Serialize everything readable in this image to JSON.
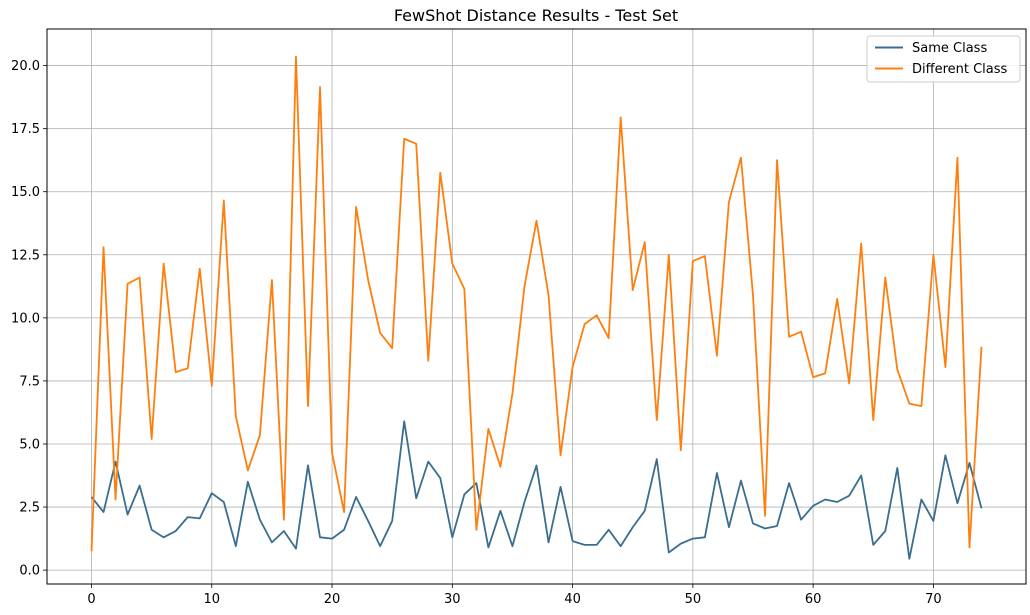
{
  "chart_data": {
    "type": "line",
    "title": "FewShot Distance Results - Test Set",
    "xlabel": "",
    "ylabel": "",
    "xlim": [
      -3.7,
      77.7
    ],
    "ylim": [
      -0.55,
      21.45
    ],
    "xticks": [
      0,
      10,
      20,
      30,
      40,
      50,
      60,
      70
    ],
    "yticks": [
      0.0,
      2.5,
      5.0,
      7.5,
      10.0,
      12.5,
      15.0,
      17.5,
      20.0
    ],
    "ytick_labels": [
      "0.0",
      "2.5",
      "5.0",
      "7.5",
      "10.0",
      "12.5",
      "15.0",
      "17.5",
      "20.0"
    ],
    "grid": true,
    "legend_position": "top-right",
    "series": [
      {
        "name": "Same Class",
        "color": "#3a6e8f",
        "values": [
          2.9,
          2.3,
          4.3,
          2.2,
          3.35,
          1.6,
          1.3,
          1.55,
          2.1,
          2.05,
          3.05,
          2.7,
          0.95,
          3.5,
          2.0,
          1.1,
          1.55,
          0.85,
          4.15,
          1.3,
          1.25,
          1.6,
          2.9,
          1.95,
          0.95,
          1.95,
          5.9,
          2.85,
          4.3,
          3.65,
          1.3,
          3.0,
          3.45,
          0.9,
          2.35,
          0.95,
          2.7,
          4.15,
          1.1,
          3.3,
          1.15,
          1.0,
          1.0,
          1.6,
          0.95,
          1.7,
          2.35,
          4.4,
          0.7,
          1.05,
          1.25,
          1.3,
          3.85,
          1.7,
          3.55,
          1.85,
          1.65,
          1.75,
          3.45,
          2.0,
          2.55,
          2.8,
          2.7,
          2.95,
          3.75,
          1.0,
          1.55,
          4.05,
          0.45,
          2.8,
          1.95,
          4.55,
          2.65,
          4.25,
          2.45
        ]
      },
      {
        "name": "Different Class",
        "color": "#ff7f0e",
        "values": [
          0.75,
          12.8,
          2.8,
          11.35,
          11.6,
          5.2,
          12.15,
          7.85,
          8.0,
          11.95,
          7.3,
          14.65,
          6.1,
          3.95,
          5.35,
          11.5,
          2.0,
          20.35,
          6.5,
          19.15,
          4.65,
          2.3,
          14.4,
          11.5,
          9.4,
          8.8,
          17.1,
          16.9,
          8.3,
          15.75,
          12.15,
          11.15,
          1.6,
          5.6,
          4.1,
          7.0,
          11.25,
          13.85,
          10.9,
          4.55,
          8.05,
          9.75,
          10.1,
          9.2,
          17.95,
          11.1,
          13.0,
          5.95,
          12.5,
          4.75,
          12.25,
          12.45,
          8.5,
          14.6,
          16.35,
          10.9,
          2.15,
          16.25,
          9.25,
          9.45,
          7.65,
          7.8,
          10.75,
          7.4,
          12.95,
          5.95,
          11.6,
          7.95,
          6.6,
          6.5,
          12.5,
          8.05,
          16.35,
          0.9,
          8.85
        ]
      }
    ]
  }
}
